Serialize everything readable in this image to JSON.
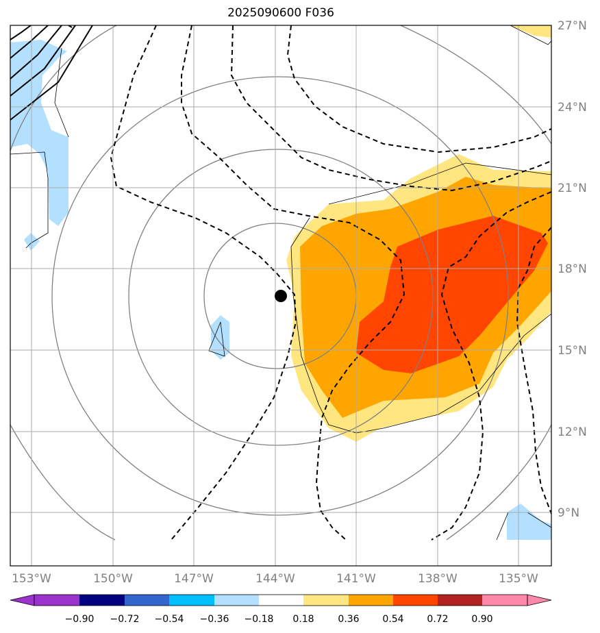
{
  "title": "2025090600 F036",
  "map": {
    "lat_labels": [
      "27°N",
      "24°N",
      "21°N",
      "18°N",
      "15°N",
      "12°N",
      "9°N"
    ],
    "lon_labels": [
      "153°W",
      "150°W",
      "147°W",
      "144°W",
      "141°W",
      "138°W",
      "135°W"
    ],
    "storm_center_marker": "black-dot"
  },
  "colorbar": {
    "ticks": [
      "−0.90",
      "−0.72",
      "−0.54",
      "−0.36",
      "−0.18",
      "0.18",
      "0.36",
      "0.54",
      "0.72",
      "0.90"
    ],
    "colors": [
      "#9933cc",
      "#000080",
      "#3366cc",
      "#00bfff",
      "#b3e0ff",
      "#ffffff",
      "#ffe680",
      "#ffa500",
      "#ff4500",
      "#b22222",
      "#ff88aa"
    ]
  }
}
